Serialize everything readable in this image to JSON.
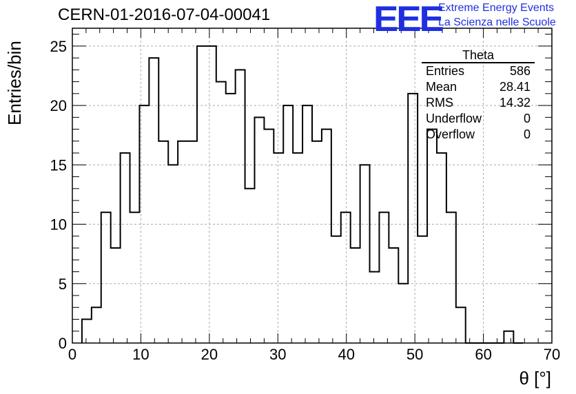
{
  "title": "CERN-01-2016-07-04-00041",
  "logo": {
    "mark": "EEE",
    "line1": "Extreme Energy Events",
    "line2": "La Scienza nelle Scuole",
    "color": "#1f2fe0"
  },
  "stats_box": {
    "title": "Theta",
    "rows": [
      {
        "label": "Entries",
        "value": "586"
      },
      {
        "label": "Mean",
        "value": "28.41"
      },
      {
        "label": "RMS",
        "value": "14.32"
      },
      {
        "label": "Underflow",
        "value": "0"
      },
      {
        "label": "Overflow",
        "value": "0"
      }
    ]
  },
  "chart_data": {
    "type": "bar",
    "title": "CERN-01-2016-07-04-00041",
    "xlabel": "θ [°]",
    "ylabel": "Entries/bin",
    "xlim": [
      0,
      70
    ],
    "ylim": [
      0,
      26.5
    ],
    "xticks": [
      0,
      10,
      20,
      30,
      40,
      50,
      60,
      70
    ],
    "yticks": [
      0,
      5,
      10,
      15,
      20,
      25
    ],
    "grid": true,
    "bin_start": 1.4,
    "bin_width": 1.4,
    "values": [
      2,
      3,
      11,
      8,
      16,
      11,
      20,
      24,
      17,
      15,
      17,
      17,
      25,
      25,
      22,
      21,
      23,
      13,
      19,
      18,
      16,
      20,
      16,
      20,
      17,
      18,
      9,
      11,
      8,
      15,
      6,
      11,
      8,
      5,
      21,
      9,
      18,
      16,
      11,
      3,
      0,
      0,
      0,
      0,
      1,
      0
    ]
  }
}
